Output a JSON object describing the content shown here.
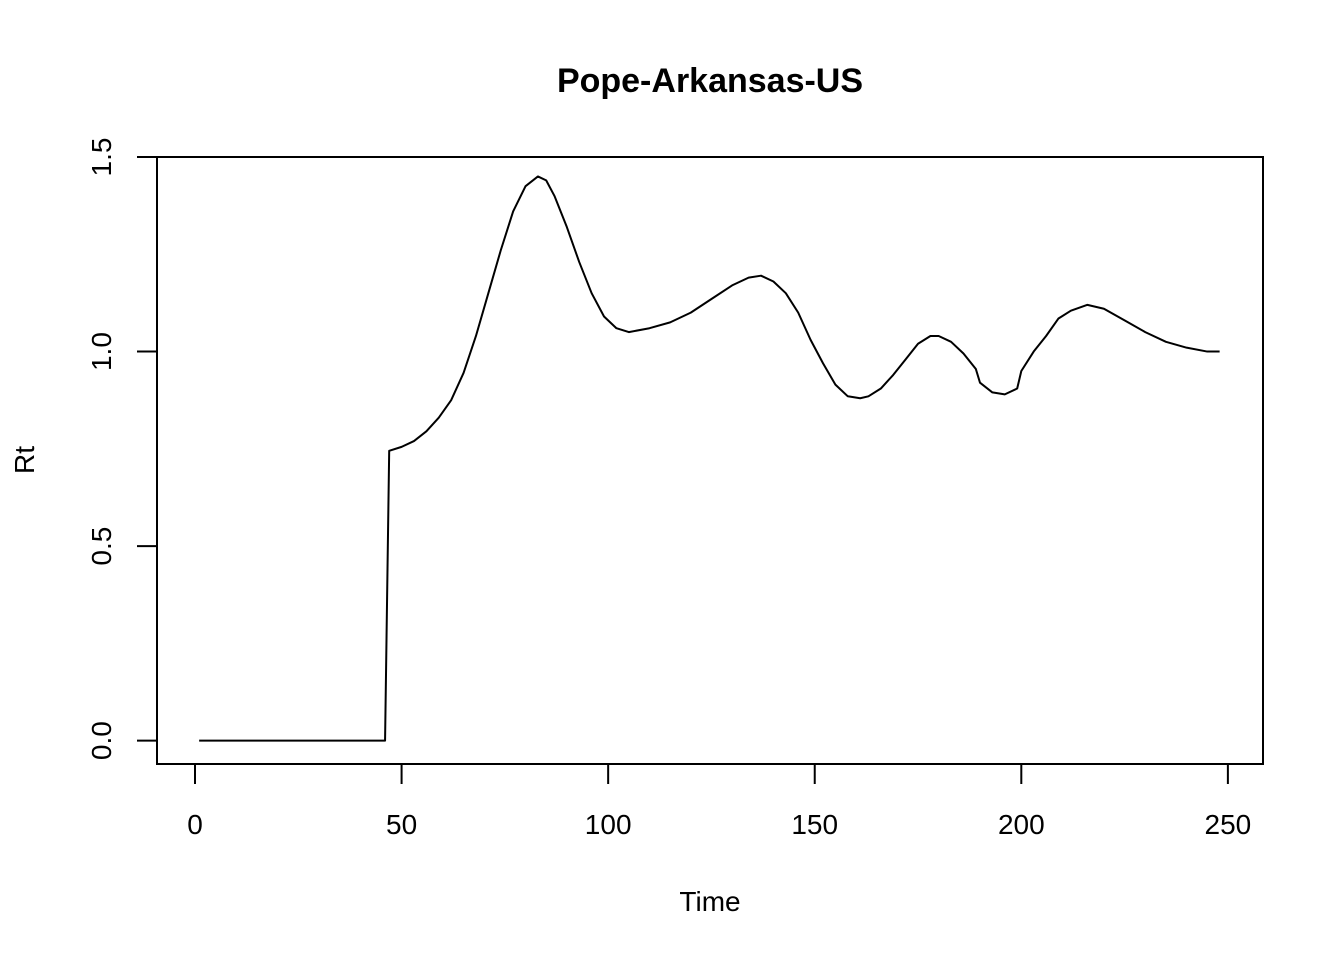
{
  "chart_data": {
    "type": "line",
    "title": "Pope-Arkansas-US",
    "xlabel": "Time",
    "ylabel": "Rt",
    "xlim": [
      -9.2,
      258.5
    ],
    "ylim": [
      -0.06,
      1.5
    ],
    "xticks": [
      0,
      50,
      100,
      150,
      200,
      250
    ],
    "yticks": [
      0.0,
      0.5,
      1.0,
      1.5
    ],
    "x_tick_labels": [
      "0",
      "50",
      "100",
      "150",
      "200",
      "250"
    ],
    "y_tick_labels": [
      "0.0",
      "0.5",
      "1.0",
      "1.5"
    ],
    "grid": false,
    "series": [
      {
        "x": [
          1,
          46,
          47,
          50,
          53,
          56,
          59,
          62,
          65,
          68,
          71,
          74,
          77,
          80,
          83,
          85,
          87,
          90,
          93,
          96,
          99,
          102,
          105,
          110,
          115,
          120,
          125,
          130,
          134,
          137,
          140,
          143,
          146,
          149,
          152,
          155,
          158,
          161,
          163,
          166,
          169,
          172,
          175,
          178,
          180,
          183,
          186,
          189,
          190,
          193,
          196,
          199,
          200,
          203,
          206,
          209,
          212,
          216,
          220,
          225,
          230,
          235,
          240,
          245,
          248
        ],
        "y": [
          0.0,
          0.0,
          0.745,
          0.755,
          0.77,
          0.795,
          0.83,
          0.875,
          0.945,
          1.04,
          1.15,
          1.26,
          1.36,
          1.425,
          1.45,
          1.44,
          1.4,
          1.32,
          1.23,
          1.15,
          1.09,
          1.06,
          1.05,
          1.06,
          1.075,
          1.1,
          1.135,
          1.17,
          1.19,
          1.195,
          1.18,
          1.15,
          1.1,
          1.03,
          0.97,
          0.915,
          0.885,
          0.88,
          0.885,
          0.905,
          0.94,
          0.98,
          1.02,
          1.04,
          1.04,
          1.025,
          0.995,
          0.955,
          0.92,
          0.895,
          0.89,
          0.905,
          0.95,
          1.0,
          1.04,
          1.085,
          1.105,
          1.12,
          1.11,
          1.08,
          1.05,
          1.025,
          1.01,
          1.0,
          1.0
        ]
      }
    ]
  }
}
